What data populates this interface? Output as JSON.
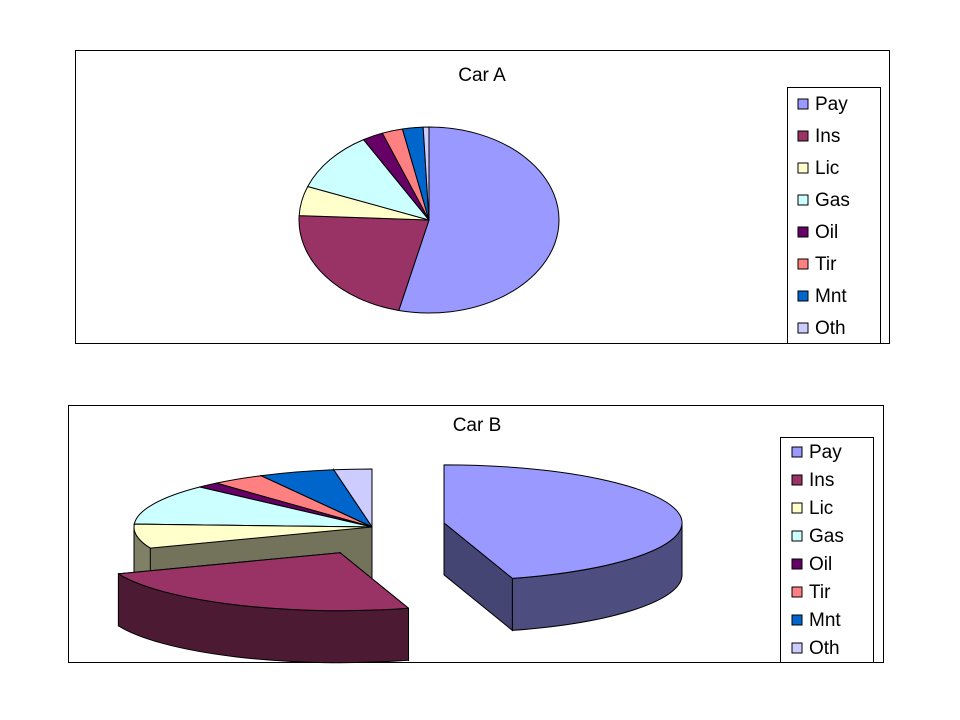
{
  "chart_data": [
    {
      "type": "pie",
      "title": "Car A",
      "legend_position": "right",
      "categories": [
        "Pay",
        "Ins",
        "Lic",
        "Gas",
        "Oil",
        "Tir",
        "Mnt",
        "Oth"
      ],
      "values": [
        52.5,
        21.5,
        5.0,
        10.5,
        2.5,
        2.5,
        2.5,
        0.7
      ],
      "colors": [
        "#9999FF",
        "#993366",
        "#FFFFCC",
        "#CCFFFF",
        "#660066",
        "#FF8080",
        "#0066CC",
        "#CCCCFF"
      ]
    },
    {
      "type": "pie",
      "style": "3d-exploded",
      "title": "Car B",
      "legend_position": "right",
      "categories": [
        "Pay",
        "Ins",
        "Lic",
        "Gas",
        "Oil",
        "Tir",
        "Mnt",
        "Oth"
      ],
      "values": [
        44.0,
        23.0,
        6.5,
        11.0,
        1.5,
        3.5,
        5.0,
        2.5
      ],
      "colors": [
        "#9999FF",
        "#993366",
        "#FFFFCC",
        "#CCFFFF",
        "#660066",
        "#FF8080",
        "#0066CC",
        "#CCCCFF"
      ]
    }
  ]
}
